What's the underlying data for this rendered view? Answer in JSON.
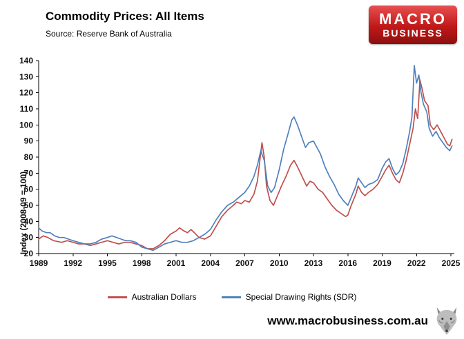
{
  "header": {
    "title": "Commodity Prices: All Items",
    "source": "Source: Reserve Bank of Australia"
  },
  "logo": {
    "line1": "MACRO",
    "line2": "BUSINESS",
    "bg_color": "#c01818"
  },
  "footer": {
    "website": "www.macrobusiness.com.au"
  },
  "chart_data": {
    "type": "line",
    "title": "Commodity Prices: All Items",
    "ylabel": "Index (2008-09 = 100)",
    "ylim": [
      20,
      140
    ],
    "ytick_step": 10,
    "xticks": [
      1989,
      1992,
      1995,
      1998,
      2001,
      2004,
      2007,
      2010,
      2013,
      2016,
      2019,
      2022,
      2025
    ],
    "xlim": [
      1989,
      2025.3
    ],
    "grid": false,
    "legend_position": "bottom",
    "series": [
      {
        "name": "Australian Dollars",
        "color": "#C0504D",
        "points": [
          [
            1989.0,
            29
          ],
          [
            1989.4,
            31
          ],
          [
            1989.8,
            30
          ],
          [
            1990.3,
            28
          ],
          [
            1991,
            27
          ],
          [
            1991.5,
            28
          ],
          [
            1992,
            27
          ],
          [
            1992.5,
            26
          ],
          [
            1993,
            26
          ],
          [
            1993.5,
            25
          ],
          [
            1994,
            26
          ],
          [
            1994.5,
            27
          ],
          [
            1995,
            28
          ],
          [
            1995.5,
            27
          ],
          [
            1996,
            26
          ],
          [
            1996.5,
            27
          ],
          [
            1997,
            27
          ],
          [
            1997.5,
            26
          ],
          [
            1998,
            25
          ],
          [
            1998.5,
            23
          ],
          [
            1999,
            23
          ],
          [
            1999.5,
            25
          ],
          [
            2000,
            28
          ],
          [
            2000.5,
            32
          ],
          [
            2001,
            34
          ],
          [
            2001.3,
            36
          ],
          [
            2001.7,
            34
          ],
          [
            2002,
            33
          ],
          [
            2002.3,
            35
          ],
          [
            2002.6,
            33
          ],
          [
            2003,
            30
          ],
          [
            2003.5,
            29
          ],
          [
            2004,
            31
          ],
          [
            2004.5,
            37
          ],
          [
            2005,
            43
          ],
          [
            2005.5,
            47
          ],
          [
            2006,
            50
          ],
          [
            2006.3,
            52
          ],
          [
            2006.7,
            51
          ],
          [
            2007,
            53
          ],
          [
            2007.4,
            52
          ],
          [
            2007.8,
            57
          ],
          [
            2008.1,
            65
          ],
          [
            2008.5,
            89
          ],
          [
            2008.7,
            80
          ],
          [
            2008.9,
            62
          ],
          [
            2009.2,
            53
          ],
          [
            2009.5,
            50
          ],
          [
            2009.8,
            55
          ],
          [
            2010.2,
            62
          ],
          [
            2010.6,
            68
          ],
          [
            2011,
            75
          ],
          [
            2011.3,
            78
          ],
          [
            2011.6,
            74
          ],
          [
            2012,
            68
          ],
          [
            2012.4,
            62
          ],
          [
            2012.7,
            65
          ],
          [
            2013,
            64
          ],
          [
            2013.4,
            60
          ],
          [
            2013.8,
            58
          ],
          [
            2014.2,
            54
          ],
          [
            2014.6,
            50
          ],
          [
            2015,
            47
          ],
          [
            2015.4,
            45
          ],
          [
            2015.8,
            43
          ],
          [
            2016,
            44
          ],
          [
            2016.3,
            50
          ],
          [
            2016.7,
            57
          ],
          [
            2016.9,
            62
          ],
          [
            2017.2,
            58
          ],
          [
            2017.5,
            56
          ],
          [
            2017.8,
            58
          ],
          [
            2018.2,
            60
          ],
          [
            2018.6,
            63
          ],
          [
            2019,
            68
          ],
          [
            2019.3,
            72
          ],
          [
            2019.6,
            75
          ],
          [
            2019.9,
            70
          ],
          [
            2020.2,
            66
          ],
          [
            2020.5,
            64
          ],
          [
            2020.8,
            70
          ],
          [
            2021.1,
            78
          ],
          [
            2021.4,
            88
          ],
          [
            2021.7,
            98
          ],
          [
            2021.9,
            110
          ],
          [
            2022.1,
            104
          ],
          [
            2022.3,
            128
          ],
          [
            2022.5,
            122
          ],
          [
            2022.7,
            115
          ],
          [
            2023,
            112
          ],
          [
            2023.2,
            100
          ],
          [
            2023.5,
            97
          ],
          [
            2023.8,
            100
          ],
          [
            2024.1,
            96
          ],
          [
            2024.4,
            92
          ],
          [
            2024.7,
            88
          ],
          [
            2024.9,
            87
          ],
          [
            2025.1,
            91
          ]
        ]
      },
      {
        "name": "Special Drawing Rights (SDR)",
        "color": "#4F81BD",
        "points": [
          [
            1989.0,
            36
          ],
          [
            1989.3,
            34
          ],
          [
            1989.7,
            33
          ],
          [
            1990,
            33
          ],
          [
            1990.4,
            31
          ],
          [
            1990.8,
            30
          ],
          [
            1991.2,
            30
          ],
          [
            1991.6,
            29
          ],
          [
            1992,
            28
          ],
          [
            1992.5,
            27
          ],
          [
            1993,
            26
          ],
          [
            1993.5,
            26
          ],
          [
            1994,
            27
          ],
          [
            1994.5,
            29
          ],
          [
            1995,
            30
          ],
          [
            1995.4,
            31
          ],
          [
            1995.8,
            30
          ],
          [
            1996.2,
            29
          ],
          [
            1996.6,
            28
          ],
          [
            1997,
            28
          ],
          [
            1997.5,
            27
          ],
          [
            1998,
            24
          ],
          [
            1998.5,
            23
          ],
          [
            1999,
            22
          ],
          [
            1999.5,
            24
          ],
          [
            2000,
            26
          ],
          [
            2000.5,
            27
          ],
          [
            2001,
            28
          ],
          [
            2001.5,
            27
          ],
          [
            2002,
            27
          ],
          [
            2002.5,
            28
          ],
          [
            2003,
            30
          ],
          [
            2003.5,
            32
          ],
          [
            2004,
            35
          ],
          [
            2004.5,
            41
          ],
          [
            2005,
            46
          ],
          [
            2005.5,
            50
          ],
          [
            2006,
            52
          ],
          [
            2006.5,
            55
          ],
          [
            2007,
            58
          ],
          [
            2007.4,
            62
          ],
          [
            2007.8,
            68
          ],
          [
            2008.1,
            75
          ],
          [
            2008.4,
            84
          ],
          [
            2008.7,
            78
          ],
          [
            2009,
            62
          ],
          [
            2009.3,
            58
          ],
          [
            2009.6,
            61
          ],
          [
            2010,
            72
          ],
          [
            2010.4,
            85
          ],
          [
            2010.8,
            95
          ],
          [
            2011.1,
            103
          ],
          [
            2011.3,
            105
          ],
          [
            2011.6,
            100
          ],
          [
            2012,
            92
          ],
          [
            2012.3,
            86
          ],
          [
            2012.6,
            89
          ],
          [
            2013,
            90
          ],
          [
            2013.3,
            86
          ],
          [
            2013.6,
            82
          ],
          [
            2014,
            74
          ],
          [
            2014.4,
            68
          ],
          [
            2014.8,
            63
          ],
          [
            2015.2,
            57
          ],
          [
            2015.6,
            53
          ],
          [
            2016,
            50
          ],
          [
            2016.3,
            55
          ],
          [
            2016.7,
            62
          ],
          [
            2016.9,
            67
          ],
          [
            2017.2,
            64
          ],
          [
            2017.5,
            61
          ],
          [
            2017.8,
            63
          ],
          [
            2018.2,
            64
          ],
          [
            2018.6,
            66
          ],
          [
            2019,
            73
          ],
          [
            2019.3,
            77
          ],
          [
            2019.6,
            79
          ],
          [
            2019.9,
            73
          ],
          [
            2020.2,
            69
          ],
          [
            2020.5,
            71
          ],
          [
            2020.8,
            76
          ],
          [
            2021.1,
            85
          ],
          [
            2021.4,
            96
          ],
          [
            2021.6,
            105
          ],
          [
            2021.8,
            137
          ],
          [
            2022.0,
            126
          ],
          [
            2022.2,
            131
          ],
          [
            2022.4,
            120
          ],
          [
            2022.6,
            113
          ],
          [
            2022.9,
            108
          ],
          [
            2023.1,
            98
          ],
          [
            2023.4,
            93
          ],
          [
            2023.7,
            96
          ],
          [
            2024,
            92
          ],
          [
            2024.3,
            89
          ],
          [
            2024.6,
            86
          ],
          [
            2024.9,
            84
          ],
          [
            2025.1,
            87
          ]
        ]
      }
    ]
  }
}
